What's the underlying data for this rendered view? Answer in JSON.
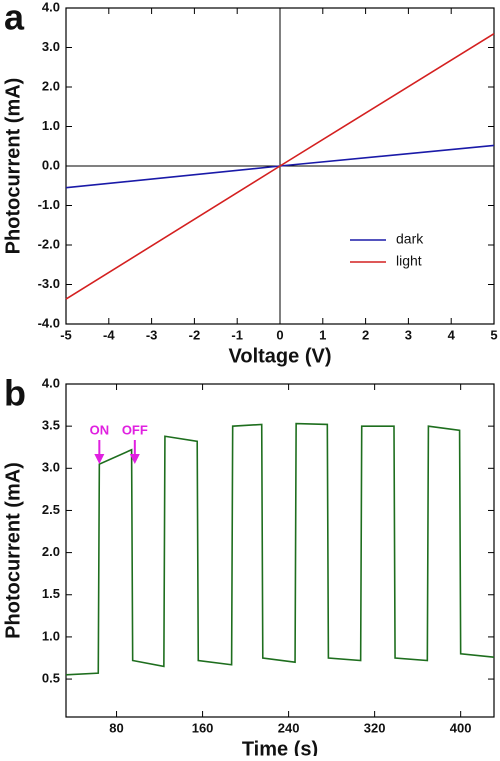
{
  "chart_data": [
    {
      "type": "line",
      "panel_label": "a",
      "xlabel": "Voltage (V)",
      "ylabel": "Photocurrent (mA)",
      "x": [
        -5,
        0,
        5
      ],
      "series": [
        {
          "name": "dark",
          "color": "#1a1aa8",
          "values": [
            -0.55,
            0,
            0.52
          ]
        },
        {
          "name": "light",
          "color": "#d42020",
          "values": [
            -3.37,
            0,
            3.35
          ]
        }
      ],
      "xlim": [
        -5,
        5
      ],
      "xticks": [
        -5,
        -4,
        -3,
        -2,
        -1,
        0,
        1,
        2,
        3,
        4,
        5
      ],
      "ylim": [
        -4,
        4
      ],
      "yticks": [
        {
          "value": -4,
          "label": "-4.0"
        },
        {
          "value": -3,
          "label": "-3.0"
        },
        {
          "value": -2,
          "label": "-2.0"
        },
        {
          "value": -1,
          "label": "-1.0"
        },
        {
          "value": 0,
          "label": "0.0"
        },
        {
          "value": 1,
          "label": "1.0"
        },
        {
          "value": 2,
          "label": "2.0"
        },
        {
          "value": 3,
          "label": "3.0"
        },
        {
          "value": 4,
          "label": "4.0"
        }
      ],
      "zero_lines": true,
      "legend": "lower right"
    },
    {
      "type": "line",
      "panel_label": "b",
      "xlabel": "Time (s)",
      "ylabel": "Photocurrent (mA)",
      "x": [
        33,
        63,
        64,
        94,
        95,
        124,
        125,
        155,
        156,
        187,
        188,
        215,
        216,
        246,
        247,
        276,
        277,
        307,
        308,
        338,
        339,
        369,
        370,
        399,
        400,
        431
      ],
      "series": [
        {
          "name": null,
          "color": "#1e6e1e",
          "values": [
            0.55,
            0.57,
            3.05,
            3.22,
            0.72,
            0.65,
            3.38,
            3.32,
            0.72,
            0.67,
            3.5,
            3.52,
            0.75,
            0.7,
            3.53,
            3.52,
            0.75,
            0.72,
            3.5,
            3.5,
            0.75,
            0.72,
            3.5,
            3.45,
            0.8,
            0.76
          ]
        }
      ],
      "xlim": [
        33,
        431
      ],
      "xticks": [
        80,
        160,
        240,
        320,
        400
      ],
      "ylim": [
        0.05,
        4
      ],
      "yticks": [
        0.5,
        {
          "value": 1,
          "label": "1.0"
        },
        1.5,
        {
          "value": 2,
          "label": "2.0"
        },
        2.5,
        {
          "value": 3,
          "label": "3.0"
        },
        3.5,
        {
          "value": 4,
          "label": "4.0"
        }
      ],
      "annotations": [
        "ON",
        "OFF"
      ],
      "annotation_color": "#e020e0"
    }
  ]
}
